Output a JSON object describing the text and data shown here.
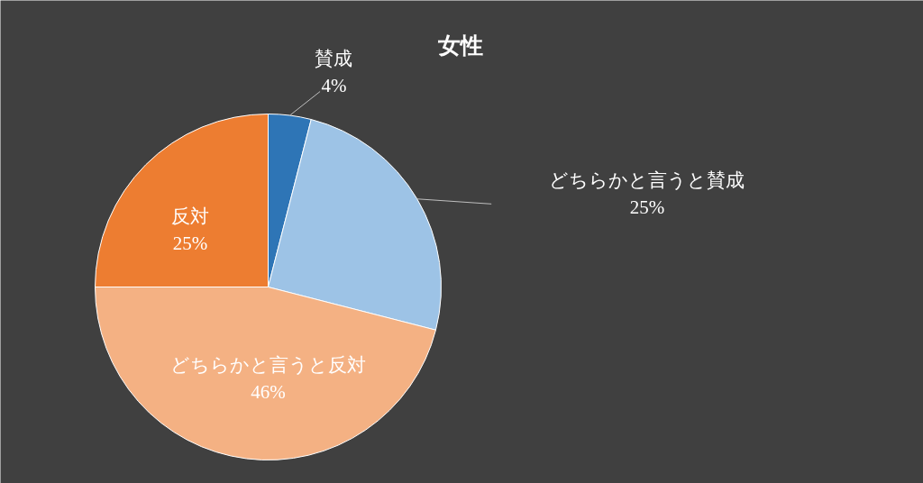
{
  "chart_data": {
    "type": "pie",
    "title": "女性",
    "categories": [
      "賛成",
      "どちらかと言うと賛成",
      "どちらかと言うと反対",
      "反対"
    ],
    "values": [
      4,
      25,
      46,
      25
    ],
    "colors": [
      "#2e75b6",
      "#9dc3e6",
      "#f4b183",
      "#ed7d31"
    ],
    "value_labels": [
      "4%",
      "25%",
      "46%",
      "25%"
    ],
    "legend": false
  }
}
